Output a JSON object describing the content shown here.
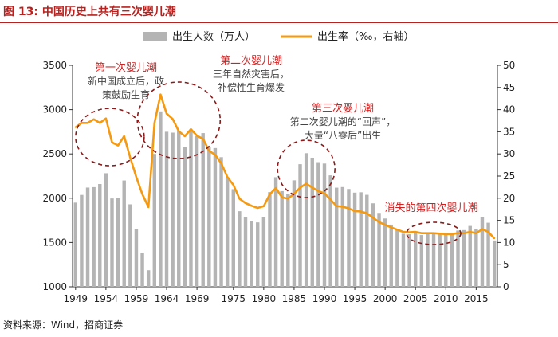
{
  "header": {
    "title": "图 13:  中国历史上共有三次婴儿潮"
  },
  "footer": {
    "source": "资料来源：Wind，招商证券"
  },
  "colors": {
    "bar": "#b4b4b4",
    "line": "#f59a10",
    "accent": "#d21f1f",
    "title": "#b5221f",
    "circle": "#8b1a1a"
  },
  "chart_data": {
    "type": "bar+line",
    "title": "中国历史上共有三次婴儿潮",
    "x": [
      1949,
      1950,
      1951,
      1952,
      1953,
      1954,
      1955,
      1956,
      1957,
      1958,
      1959,
      1960,
      1961,
      1962,
      1963,
      1964,
      1965,
      1966,
      1967,
      1968,
      1969,
      1970,
      1971,
      1972,
      1973,
      1974,
      1975,
      1976,
      1977,
      1978,
      1979,
      1980,
      1981,
      1982,
      1983,
      1984,
      1985,
      1986,
      1987,
      1988,
      1989,
      1990,
      1991,
      1992,
      1993,
      1994,
      1995,
      1996,
      1997,
      1998,
      1999,
      2000,
      2001,
      2002,
      2003,
      2004,
      2005,
      2006,
      2007,
      2008,
      2009,
      2010,
      2011,
      2012,
      2013,
      2014,
      2015,
      2016,
      2017,
      2018
    ],
    "xticks": [
      1949,
      1954,
      1959,
      1964,
      1969,
      1975,
      1980,
      1985,
      1990,
      1995,
      2000,
      2005,
      2010,
      2015
    ],
    "series": [
      {
        "name": "出生人数（万人）",
        "type": "bar",
        "axis": "left",
        "values": [
          1950,
          2037,
          2120,
          2125,
          2160,
          2282,
          1997,
          2000,
          2200,
          1931,
          1654,
          1382,
          1187,
          2500,
          2980,
          2750,
          2740,
          2760,
          2580,
          2760,
          2700,
          2735,
          2580,
          2566,
          2463,
          2235,
          2102,
          1853,
          1786,
          1745,
          1727,
          1787,
          2069,
          2237,
          2080,
          2050,
          2202,
          2384,
          2508,
          2457,
          2407,
          2391,
          2258,
          2119,
          2126,
          2104,
          2063,
          2067,
          2038,
          1942,
          1834,
          1771,
          1702,
          1647,
          1599,
          1593,
          1617,
          1584,
          1594,
          1608,
          1591,
          1592,
          1604,
          1635,
          1640,
          1687,
          1655,
          1786,
          1723,
          1523
        ]
      },
      {
        "name": "出生率（‰，右轴）",
        "type": "line",
        "axis": "right",
        "values": [
          36.0,
          37.0,
          37.0,
          37.8,
          37.0,
          38.0,
          32.6,
          31.9,
          34.0,
          29.2,
          24.8,
          20.9,
          18.0,
          37.0,
          43.4,
          39.1,
          37.9,
          35.1,
          34.0,
          35.6,
          34.1,
          33.4,
          30.7,
          29.8,
          27.9,
          24.8,
          23.0,
          19.9,
          18.9,
          18.3,
          17.8,
          18.2,
          20.9,
          22.3,
          20.2,
          19.9,
          21.0,
          22.4,
          23.3,
          22.4,
          21.6,
          21.1,
          19.7,
          18.2,
          18.1,
          17.7,
          17.1,
          17.0,
          16.6,
          15.6,
          14.6,
          14.0,
          13.4,
          12.9,
          12.4,
          12.3,
          12.4,
          12.1,
          12.1,
          12.1,
          12.0,
          11.9,
          11.9,
          12.1,
          12.1,
          12.4,
          12.1,
          13.0,
          12.4,
          10.9
        ]
      }
    ],
    "y_left": {
      "min": 1000,
      "max": 3500,
      "ticks": [
        1000,
        1500,
        2000,
        2500,
        3000,
        3500
      ]
    },
    "y_right": {
      "min": 0,
      "max": 50,
      "ticks": [
        0,
        5,
        10,
        15,
        20,
        25,
        30,
        35,
        40,
        45,
        50
      ]
    },
    "legend": {
      "position": "top",
      "bar_label": "出生人数（万人）",
      "line_label": "出生率（‰，右轴）"
    },
    "annotations": [
      {
        "id": "boom1",
        "head": "第一次婴儿潮",
        "body": [
          "新中国成立后，政",
          "策鼓励生育"
        ]
      },
      {
        "id": "boom2",
        "head": "第二次婴儿潮",
        "body": [
          "三年自然灾害后，",
          "补偿性生育爆发"
        ]
      },
      {
        "id": "boom3",
        "head": "第三次婴儿潮",
        "body": [
          "第二次婴儿潮的“回声”，",
          "大量“八零后”出生"
        ]
      },
      {
        "id": "boom4",
        "head": "消失的第四次婴儿潮",
        "body": []
      }
    ]
  }
}
